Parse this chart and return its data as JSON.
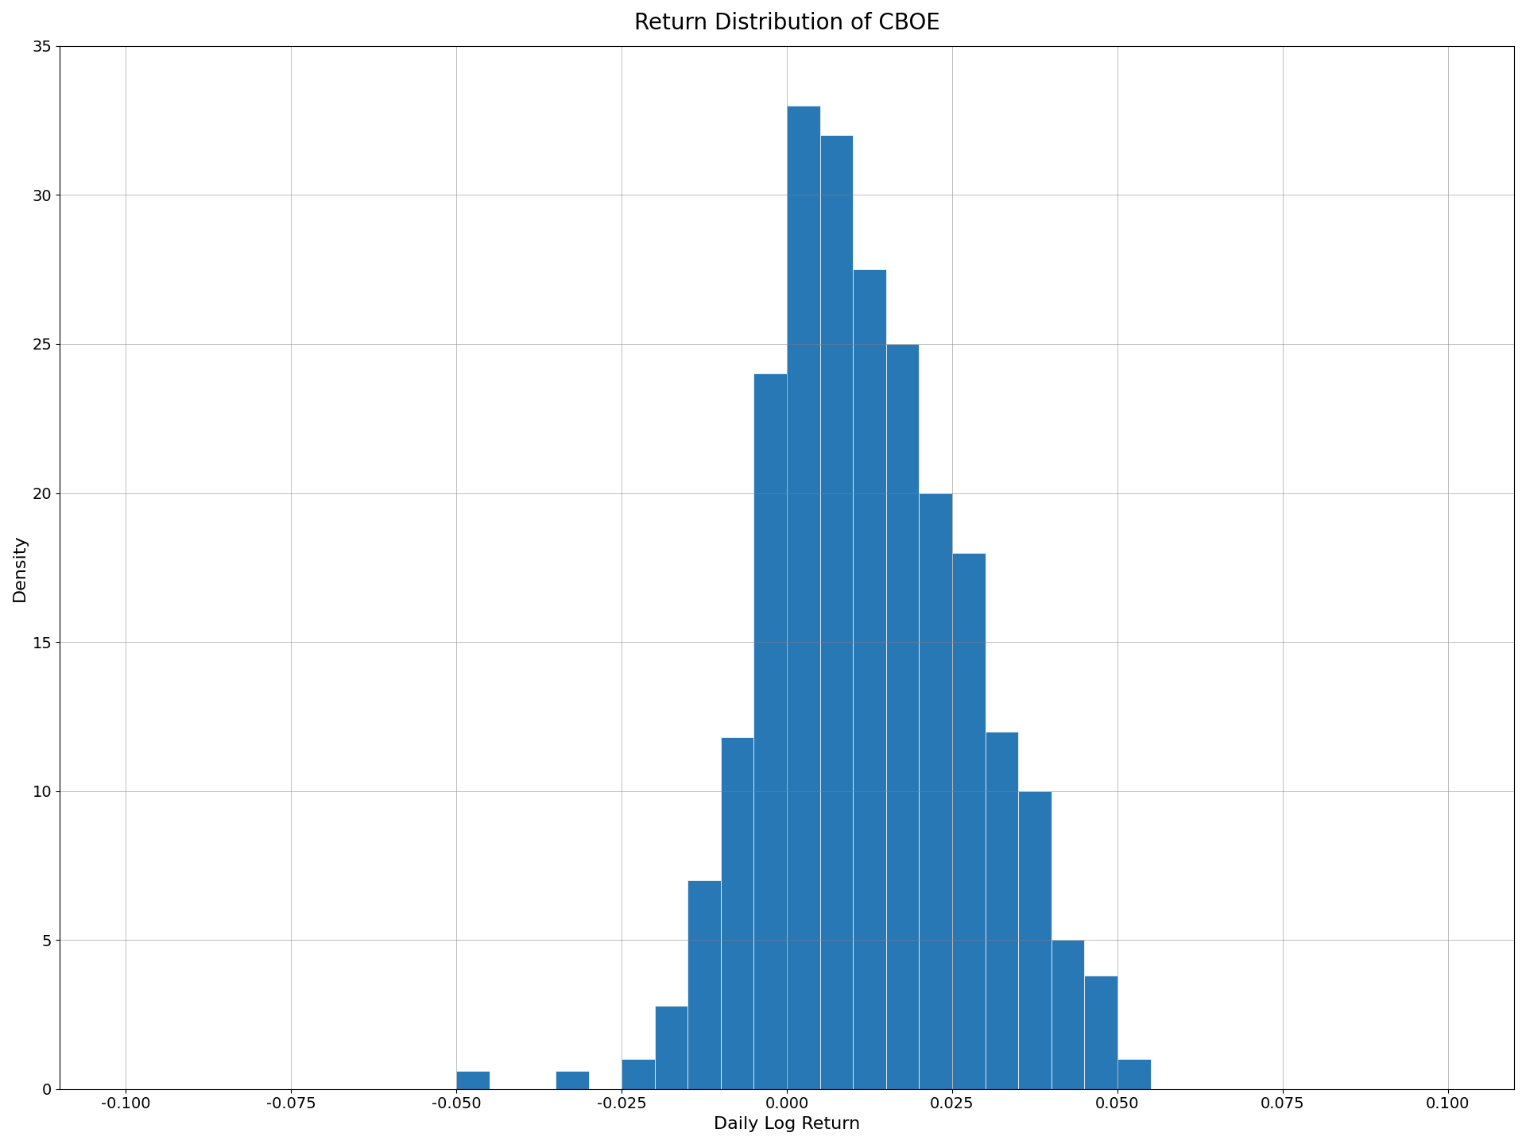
{
  "title": "Return Distribution of CBOE",
  "xlabel": "Daily Log Return",
  "ylabel": "Density",
  "bar_color": "#2878b5",
  "bar_edge_color": "white",
  "xlim": [
    -0.11,
    0.11
  ],
  "ylim": [
    0,
    35
  ],
  "xticks": [
    -0.1,
    -0.075,
    -0.05,
    -0.025,
    0.0,
    0.025,
    0.05,
    0.075,
    0.1
  ],
  "xtick_labels": [
    "-0.100",
    "-0.075",
    "-0.050",
    "-0.025",
    "0.000",
    "0.025",
    "0.050",
    "0.075",
    "0.100"
  ],
  "yticks": [
    0,
    5,
    10,
    15,
    20,
    25,
    30,
    35
  ],
  "title_fontsize": 20,
  "label_fontsize": 16,
  "tick_fontsize": 14,
  "grid": true,
  "bin_edges": [
    -0.1,
    -0.095,
    -0.09,
    -0.085,
    -0.08,
    -0.075,
    -0.07,
    -0.065,
    -0.06,
    -0.055,
    -0.05,
    -0.045,
    -0.04,
    -0.035,
    -0.03,
    -0.025,
    -0.02,
    -0.015,
    -0.01,
    -0.005,
    0.0,
    0.005,
    0.01,
    0.015,
    0.02,
    0.025,
    0.03,
    0.035,
    0.04,
    0.045,
    0.05,
    0.055,
    0.06,
    0.065,
    0.07,
    0.075,
    0.08,
    0.085,
    0.09,
    0.095,
    0.1
  ],
  "densities": [
    0.0,
    0.0,
    0.0,
    0.0,
    0.0,
    0.0,
    0.0,
    0.0,
    0.0,
    0.0,
    0.6,
    0.0,
    0.0,
    0.6,
    0.0,
    1.0,
    2.8,
    7.0,
    11.8,
    24.0,
    33.0,
    32.0,
    27.5,
    25.0,
    20.0,
    18.0,
    12.0,
    10.0,
    5.0,
    3.8,
    1.0,
    0.0,
    0.0,
    0.0,
    0.0,
    0.0,
    0.0,
    0.0,
    0.0,
    0.0
  ],
  "background_color": "white"
}
